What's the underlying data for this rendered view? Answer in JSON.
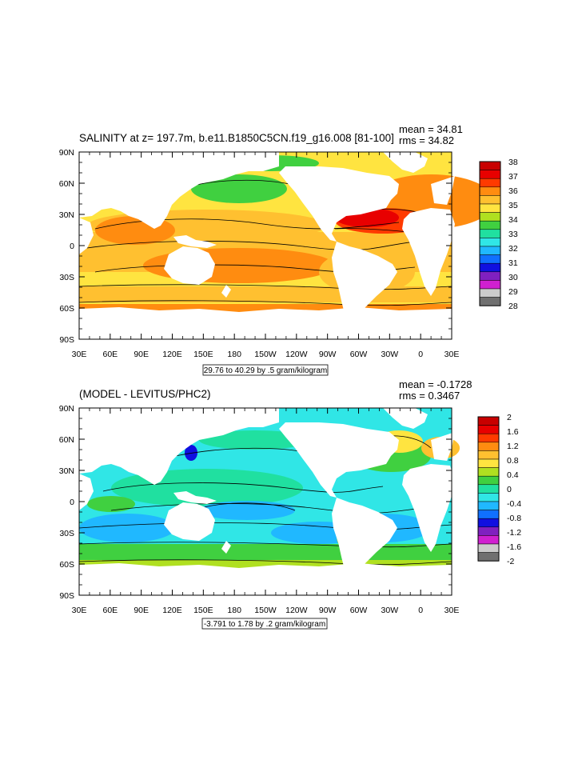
{
  "colors": {
    "ocean_top_base": "#f8e240",
    "ocean_bottom_base": "#22e6e6",
    "land": "#ffffff"
  },
  "chart_data": [
    {
      "type": "heatmap",
      "title": "SALINITY at z= 197.7m, b.e11.B1850C5CN.f19_g16.008 [81-100]",
      "stats": {
        "mean": "mean = 34.81",
        "rms": "rms = 34.82"
      },
      "y_ticks": [
        "90N",
        "60N",
        "30N",
        "0",
        "30S",
        "60S",
        "90S"
      ],
      "x_ticks": [
        "30E",
        "60E",
        "90E",
        "120E",
        "150E",
        "180",
        "150W",
        "120W",
        "90W",
        "60W",
        "30W",
        "0",
        "30E"
      ],
      "contour_info": "29.76 to 40.29 by .5 gram/kilogram",
      "colorbar": {
        "labels": [
          "38",
          "37",
          "36",
          "35",
          "34",
          "33",
          "32",
          "31",
          "30",
          "29",
          "28"
        ],
        "colors": [
          "#c80000",
          "#e80000",
          "#ff3a00",
          "#ff8c10",
          "#ffc030",
          "#ffe440",
          "#b0e020",
          "#40d040",
          "#20e0a0",
          "#30e6e6",
          "#20b8ff",
          "#1070ff",
          "#1010e0",
          "#8020c0",
          "#d020d0",
          "#cccccc",
          "#707070"
        ]
      }
    },
    {
      "type": "heatmap",
      "title": "(MODEL - LEVITUS/PHC2)",
      "stats": {
        "mean": "mean = -0.1728",
        "rms": "rms = 0.3467"
      },
      "y_ticks": [
        "90N",
        "60N",
        "30N",
        "0",
        "30S",
        "60S",
        "90S"
      ],
      "x_ticks": [
        "30E",
        "60E",
        "90E",
        "120E",
        "150E",
        "180",
        "150W",
        "120W",
        "90W",
        "60W",
        "30W",
        "0",
        "30E"
      ],
      "contour_info": "-3.791 to 1.78 by .2 gram/kilogram",
      "colorbar": {
        "labels": [
          "2",
          "1.6",
          "1.2",
          "0.8",
          "0.4",
          "0",
          "-0.4",
          "-0.8",
          "-1.2",
          "-1.6",
          "-2"
        ],
        "colors": [
          "#c80000",
          "#e80000",
          "#ff3a00",
          "#ff8c10",
          "#ffc030",
          "#ffe440",
          "#b0e020",
          "#40d040",
          "#20e0a0",
          "#30e6e6",
          "#20b8ff",
          "#1070ff",
          "#1010e0",
          "#8020c0",
          "#d020d0",
          "#cccccc",
          "#707070"
        ]
      }
    }
  ]
}
